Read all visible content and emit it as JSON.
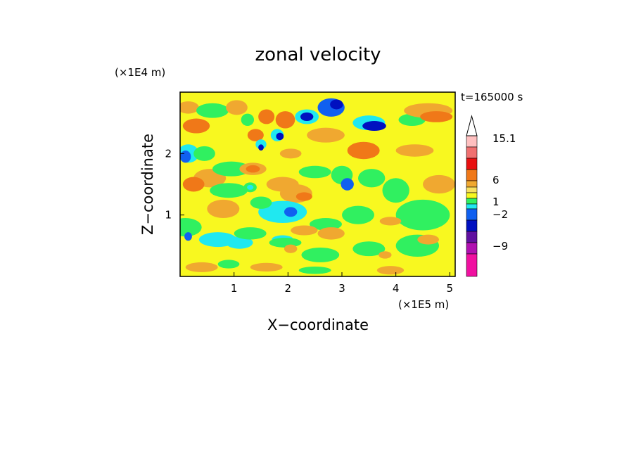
{
  "chart_data": {
    "type": "heatmap",
    "title": "zonal velocity",
    "xlabel": "X−coordinate",
    "ylabel": "Z−coordinate",
    "x_unit": "(×1E5 m)",
    "y_unit": "(×1E4 m)",
    "time_label": "t=165000 s",
    "xlim": [
      0,
      5.1
    ],
    "ylim": [
      0,
      3.0
    ],
    "x_ticks": [
      1,
      2,
      3,
      4,
      5
    ],
    "y_ticks": [
      1,
      2
    ],
    "x_tick_labels": [
      "1",
      "2",
      "3",
      "4",
      "5"
    ],
    "y_tick_labels": [
      "1",
      "2"
    ],
    "colorbar": {
      "labels": [
        "15.1",
        "6",
        "1",
        "−2",
        "−9"
      ],
      "label_values": [
        15.1,
        6,
        1,
        -2,
        -9
      ],
      "bins": [
        {
          "color": "#ffc0c0"
        },
        {
          "color": "#f07070"
        },
        {
          "color": "#e81010"
        },
        {
          "color": "#f07818"
        },
        {
          "color": "#f0a830"
        },
        {
          "color": "#f8e060"
        },
        {
          "color": "#f8f820"
        },
        {
          "color": "#30f060"
        },
        {
          "color": "#20e8f0"
        },
        {
          "color": "#1060f0"
        },
        {
          "color": "#0010c0"
        },
        {
          "color": "#6010a0"
        },
        {
          "color": "#b010b0"
        },
        {
          "color": "#f010a0"
        }
      ]
    },
    "blobs": [
      {
        "cx": 0.15,
        "cy": 2.75,
        "rx": 0.2,
        "ry": 0.1,
        "c": "#f0a830"
      },
      {
        "cx": 0.3,
        "cy": 2.45,
        "rx": 0.25,
        "ry": 0.12,
        "c": "#f07818"
      },
      {
        "cx": 0.6,
        "cy": 2.7,
        "rx": 0.3,
        "ry": 0.12,
        "c": "#30f060"
      },
      {
        "cx": 1.05,
        "cy": 2.75,
        "rx": 0.2,
        "ry": 0.12,
        "c": "#f0a830"
      },
      {
        "cx": 1.25,
        "cy": 2.55,
        "rx": 0.12,
        "ry": 0.1,
        "c": "#30f060"
      },
      {
        "cx": 1.4,
        "cy": 2.3,
        "rx": 0.15,
        "ry": 0.1,
        "c": "#f07818"
      },
      {
        "cx": 1.6,
        "cy": 2.6,
        "rx": 0.15,
        "ry": 0.12,
        "c": "#f07818"
      },
      {
        "cx": 1.95,
        "cy": 2.55,
        "rx": 0.18,
        "ry": 0.14,
        "c": "#f07818"
      },
      {
        "cx": 1.8,
        "cy": 2.3,
        "rx": 0.12,
        "ry": 0.1,
        "c": "#20e8f0"
      },
      {
        "cx": 1.85,
        "cy": 2.28,
        "rx": 0.07,
        "ry": 0.06,
        "c": "#0010c0"
      },
      {
        "cx": 1.5,
        "cy": 2.15,
        "rx": 0.1,
        "ry": 0.08,
        "c": "#20e8f0"
      },
      {
        "cx": 1.5,
        "cy": 2.1,
        "rx": 0.05,
        "ry": 0.05,
        "c": "#0010c0"
      },
      {
        "cx": 2.35,
        "cy": 2.6,
        "rx": 0.22,
        "ry": 0.12,
        "c": "#20e8f0"
      },
      {
        "cx": 2.35,
        "cy": 2.6,
        "rx": 0.12,
        "ry": 0.07,
        "c": "#0010c0"
      },
      {
        "cx": 2.8,
        "cy": 2.75,
        "rx": 0.25,
        "ry": 0.15,
        "c": "#1060f0"
      },
      {
        "cx": 2.9,
        "cy": 2.8,
        "rx": 0.12,
        "ry": 0.08,
        "c": "#0010c0"
      },
      {
        "cx": 3.5,
        "cy": 2.5,
        "rx": 0.3,
        "ry": 0.12,
        "c": "#20e8f0"
      },
      {
        "cx": 3.6,
        "cy": 2.45,
        "rx": 0.22,
        "ry": 0.08,
        "c": "#0010c0"
      },
      {
        "cx": 2.7,
        "cy": 2.3,
        "rx": 0.35,
        "ry": 0.12,
        "c": "#f0a830"
      },
      {
        "cx": 2.05,
        "cy": 2.0,
        "rx": 0.2,
        "ry": 0.08,
        "c": "#f0a830"
      },
      {
        "cx": 3.4,
        "cy": 2.05,
        "rx": 0.3,
        "ry": 0.14,
        "c": "#f07818"
      },
      {
        "cx": 4.3,
        "cy": 2.55,
        "rx": 0.25,
        "ry": 0.1,
        "c": "#30f060"
      },
      {
        "cx": 4.6,
        "cy": 2.7,
        "rx": 0.45,
        "ry": 0.12,
        "c": "#f0a830"
      },
      {
        "cx": 4.75,
        "cy": 2.6,
        "rx": 0.3,
        "ry": 0.09,
        "c": "#f07818"
      },
      {
        "cx": 4.35,
        "cy": 2.05,
        "rx": 0.35,
        "ry": 0.1,
        "c": "#f0a830"
      },
      {
        "cx": 4.8,
        "cy": 1.5,
        "rx": 0.3,
        "ry": 0.15,
        "c": "#f0a830"
      },
      {
        "cx": 0.15,
        "cy": 2.0,
        "rx": 0.2,
        "ry": 0.15,
        "c": "#20e8f0"
      },
      {
        "cx": 0.1,
        "cy": 1.95,
        "rx": 0.1,
        "ry": 0.1,
        "c": "#1060f0"
      },
      {
        "cx": 0.45,
        "cy": 2.0,
        "rx": 0.2,
        "ry": 0.12,
        "c": "#30f060"
      },
      {
        "cx": 0.55,
        "cy": 1.6,
        "rx": 0.3,
        "ry": 0.15,
        "c": "#f0a830"
      },
      {
        "cx": 0.25,
        "cy": 1.5,
        "rx": 0.2,
        "ry": 0.12,
        "c": "#f07818"
      },
      {
        "cx": 0.95,
        "cy": 1.75,
        "rx": 0.35,
        "ry": 0.12,
        "c": "#30f060"
      },
      {
        "cx": 1.35,
        "cy": 1.75,
        "rx": 0.25,
        "ry": 0.1,
        "c": "#f0a830"
      },
      {
        "cx": 1.35,
        "cy": 1.75,
        "rx": 0.13,
        "ry": 0.06,
        "c": "#f07818"
      },
      {
        "cx": 1.9,
        "cy": 1.5,
        "rx": 0.3,
        "ry": 0.12,
        "c": "#f0a830"
      },
      {
        "cx": 2.15,
        "cy": 1.35,
        "rx": 0.3,
        "ry": 0.15,
        "c": "#f0a830"
      },
      {
        "cx": 2.3,
        "cy": 1.3,
        "rx": 0.15,
        "ry": 0.07,
        "c": "#f07818"
      },
      {
        "cx": 1.3,
        "cy": 1.45,
        "rx": 0.12,
        "ry": 0.08,
        "c": "#30f060"
      },
      {
        "cx": 1.3,
        "cy": 1.45,
        "rx": 0.06,
        "ry": 0.04,
        "c": "#20e8f0"
      },
      {
        "cx": 0.9,
        "cy": 1.4,
        "rx": 0.35,
        "ry": 0.12,
        "c": "#30f060"
      },
      {
        "cx": 0.8,
        "cy": 1.1,
        "rx": 0.3,
        "ry": 0.15,
        "c": "#f0a830"
      },
      {
        "cx": 1.9,
        "cy": 1.05,
        "rx": 0.45,
        "ry": 0.18,
        "c": "#20e8f0"
      },
      {
        "cx": 2.05,
        "cy": 1.05,
        "rx": 0.12,
        "ry": 0.08,
        "c": "#1060f0"
      },
      {
        "cx": 1.5,
        "cy": 1.2,
        "rx": 0.2,
        "ry": 0.1,
        "c": "#30f060"
      },
      {
        "cx": 2.5,
        "cy": 1.7,
        "rx": 0.3,
        "ry": 0.1,
        "c": "#30f060"
      },
      {
        "cx": 3.0,
        "cy": 1.65,
        "rx": 0.2,
        "ry": 0.15,
        "c": "#30f060"
      },
      {
        "cx": 3.1,
        "cy": 1.5,
        "rx": 0.12,
        "ry": 0.1,
        "c": "#1060f0"
      },
      {
        "cx": 3.55,
        "cy": 1.6,
        "rx": 0.25,
        "ry": 0.15,
        "c": "#30f060"
      },
      {
        "cx": 4.0,
        "cy": 1.4,
        "rx": 0.25,
        "ry": 0.2,
        "c": "#30f060"
      },
      {
        "cx": 4.5,
        "cy": 1.0,
        "rx": 0.5,
        "ry": 0.25,
        "c": "#30f060"
      },
      {
        "cx": 3.3,
        "cy": 1.0,
        "rx": 0.3,
        "ry": 0.15,
        "c": "#30f060"
      },
      {
        "cx": 2.7,
        "cy": 0.85,
        "rx": 0.3,
        "ry": 0.1,
        "c": "#30f060"
      },
      {
        "cx": 2.3,
        "cy": 0.75,
        "rx": 0.25,
        "ry": 0.08,
        "c": "#f0a830"
      },
      {
        "cx": 2.8,
        "cy": 0.7,
        "rx": 0.25,
        "ry": 0.1,
        "c": "#f0a830"
      },
      {
        "cx": 3.9,
        "cy": 0.9,
        "rx": 0.2,
        "ry": 0.07,
        "c": "#f0a830"
      },
      {
        "cx": 0.1,
        "cy": 0.8,
        "rx": 0.3,
        "ry": 0.15,
        "c": "#30f060"
      },
      {
        "cx": 0.15,
        "cy": 0.65,
        "rx": 0.07,
        "ry": 0.07,
        "c": "#1060f0"
      },
      {
        "cx": 0.7,
        "cy": 0.6,
        "rx": 0.35,
        "ry": 0.12,
        "c": "#20e8f0"
      },
      {
        "cx": 1.1,
        "cy": 0.55,
        "rx": 0.25,
        "ry": 0.1,
        "c": "#20e8f0"
      },
      {
        "cx": 1.3,
        "cy": 0.7,
        "rx": 0.3,
        "ry": 0.1,
        "c": "#30f060"
      },
      {
        "cx": 1.9,
        "cy": 0.6,
        "rx": 0.2,
        "ry": 0.07,
        "c": "#20e8f0"
      },
      {
        "cx": 1.95,
        "cy": 0.55,
        "rx": 0.3,
        "ry": 0.08,
        "c": "#30f060"
      },
      {
        "cx": 2.05,
        "cy": 0.45,
        "rx": 0.12,
        "ry": 0.07,
        "c": "#f0a830"
      },
      {
        "cx": 2.6,
        "cy": 0.35,
        "rx": 0.35,
        "ry": 0.12,
        "c": "#30f060"
      },
      {
        "cx": 3.5,
        "cy": 0.45,
        "rx": 0.3,
        "ry": 0.12,
        "c": "#30f060"
      },
      {
        "cx": 4.4,
        "cy": 0.5,
        "rx": 0.4,
        "ry": 0.18,
        "c": "#30f060"
      },
      {
        "cx": 4.6,
        "cy": 0.6,
        "rx": 0.2,
        "ry": 0.08,
        "c": "#f0a830"
      },
      {
        "cx": 0.4,
        "cy": 0.15,
        "rx": 0.3,
        "ry": 0.08,
        "c": "#f0a830"
      },
      {
        "cx": 0.9,
        "cy": 0.2,
        "rx": 0.2,
        "ry": 0.07,
        "c": "#30f060"
      },
      {
        "cx": 1.6,
        "cy": 0.15,
        "rx": 0.3,
        "ry": 0.07,
        "c": "#f0a830"
      },
      {
        "cx": 2.5,
        "cy": 0.1,
        "rx": 0.3,
        "ry": 0.06,
        "c": "#30f060"
      },
      {
        "cx": 3.9,
        "cy": 0.1,
        "rx": 0.25,
        "ry": 0.07,
        "c": "#f0a830"
      },
      {
        "cx": 3.8,
        "cy": 0.35,
        "rx": 0.12,
        "ry": 0.06,
        "c": "#f0a830"
      }
    ]
  }
}
